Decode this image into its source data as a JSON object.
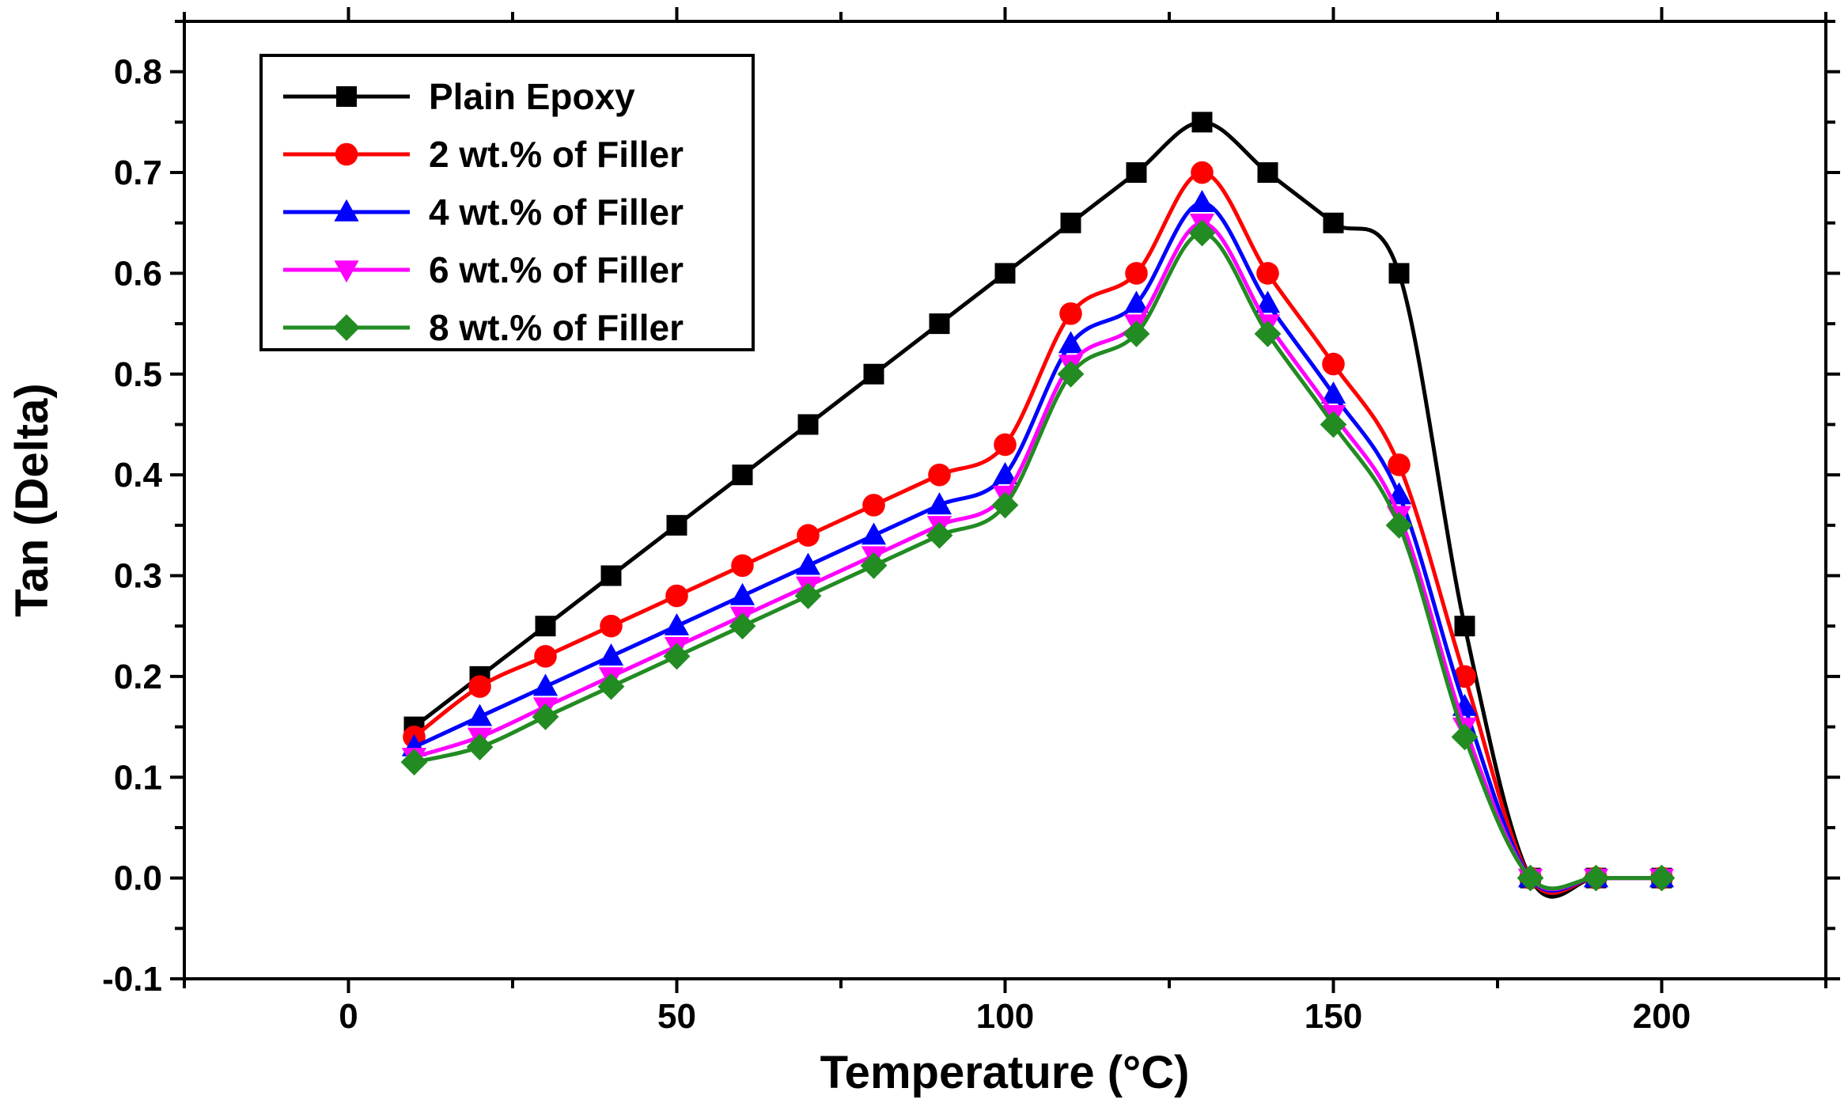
{
  "chart_data": {
    "type": "line",
    "xlabel": "Temperature (°C)",
    "ylabel": "Tan (Delta)",
    "xlim": [
      -25,
      225
    ],
    "ylim": [
      -0.1,
      0.85
    ],
    "x_ticks": [
      0,
      50,
      100,
      150,
      200
    ],
    "x_tick_labels": [
      "0",
      "50",
      "100",
      "150",
      "200"
    ],
    "y_ticks": [
      -0.1,
      0.0,
      0.1,
      0.2,
      0.3,
      0.4,
      0.5,
      0.6,
      0.7,
      0.8
    ],
    "y_tick_labels": [
      "-0.1",
      "0.0",
      "0.1",
      "0.2",
      "0.3",
      "0.4",
      "0.5",
      "0.6",
      "0.7",
      "0.8"
    ],
    "grid": false,
    "legend_position": "top-left",
    "x": [
      10,
      20,
      30,
      40,
      50,
      60,
      70,
      80,
      90,
      100,
      110,
      120,
      130,
      140,
      150,
      160,
      170,
      180,
      190,
      200
    ],
    "series": [
      {
        "name": "Plain Epoxy",
        "color": "#000000",
        "marker": "square",
        "values": [
          0.15,
          0.2,
          0.25,
          0.3,
          0.35,
          0.4,
          0.45,
          0.5,
          0.55,
          0.6,
          0.65,
          0.7,
          0.75,
          0.7,
          0.65,
          0.6,
          0.25,
          0.0,
          0.0,
          0.0
        ]
      },
      {
        "name": "2 wt.% of Filler",
        "color": "#ff0000",
        "marker": "circle",
        "values": [
          0.14,
          0.19,
          0.22,
          0.25,
          0.28,
          0.31,
          0.34,
          0.37,
          0.4,
          0.43,
          0.56,
          0.6,
          0.7,
          0.6,
          0.51,
          0.41,
          0.2,
          0.0,
          0.0,
          0.0
        ]
      },
      {
        "name": "4 wt.% of Filler",
        "color": "#0000ff",
        "marker": "triangle-up",
        "values": [
          0.13,
          0.16,
          0.19,
          0.22,
          0.25,
          0.28,
          0.31,
          0.34,
          0.37,
          0.4,
          0.53,
          0.57,
          0.67,
          0.57,
          0.48,
          0.38,
          0.17,
          0.0,
          0.0,
          0.0
        ]
      },
      {
        "name": "6 wt.% of Filler",
        "color": "#ff00ff",
        "marker": "triangle-down",
        "values": [
          0.12,
          0.14,
          0.17,
          0.2,
          0.23,
          0.26,
          0.29,
          0.32,
          0.35,
          0.38,
          0.51,
          0.55,
          0.65,
          0.55,
          0.46,
          0.36,
          0.15,
          0.0,
          0.0,
          0.0
        ]
      },
      {
        "name": "8 wt.% of Filler",
        "color": "#228b22",
        "marker": "diamond",
        "values": [
          0.115,
          0.13,
          0.16,
          0.19,
          0.22,
          0.25,
          0.28,
          0.31,
          0.34,
          0.37,
          0.5,
          0.54,
          0.64,
          0.54,
          0.45,
          0.35,
          0.14,
          0.0,
          0.0,
          0.0
        ]
      }
    ]
  }
}
